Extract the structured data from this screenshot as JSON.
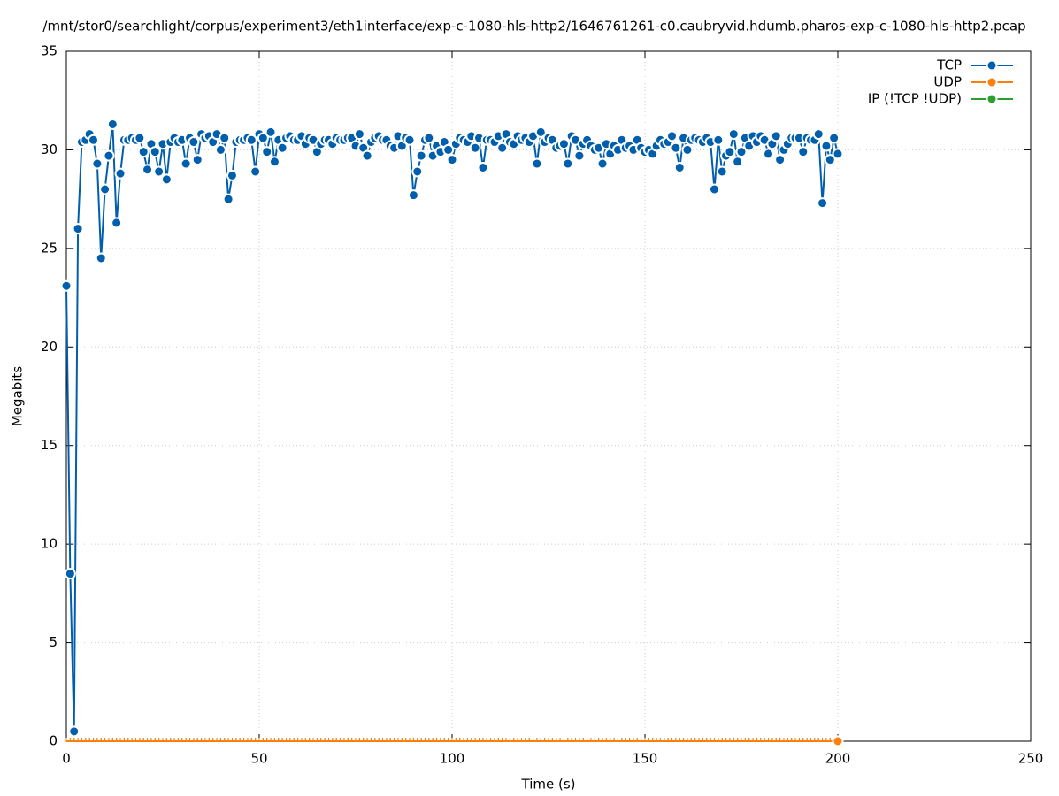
{
  "chart_data": {
    "type": "line",
    "title": "/mnt/stor0/searchlight/corpus/experiment3/eth1interface/exp-c-1080-hls-http2/1646761261-c0.caubryvid.hdumb.pharos-exp-c-1080-hls-http2.pcap",
    "x_label": "Time (s)",
    "y_label": "Megabits",
    "xlim": [
      0,
      250
    ],
    "ylim": [
      0,
      35
    ],
    "xticks": [
      0,
      50,
      100,
      150,
      200,
      250
    ],
    "yticks": [
      0,
      5,
      10,
      15,
      20,
      25,
      30,
      35
    ],
    "grid": true,
    "legend": "top-right",
    "x": [
      0,
      1,
      2,
      3,
      4,
      5,
      6,
      7,
      8,
      9,
      10,
      11,
      12,
      13,
      14,
      15,
      16,
      17,
      18,
      19,
      20,
      21,
      22,
      23,
      24,
      25,
      26,
      27,
      28,
      29,
      30,
      31,
      32,
      33,
      34,
      35,
      36,
      37,
      38,
      39,
      40,
      41,
      42,
      43,
      44,
      45,
      46,
      47,
      48,
      49,
      50,
      51,
      52,
      53,
      54,
      55,
      56,
      57,
      58,
      59,
      60,
      61,
      62,
      63,
      64,
      65,
      66,
      67,
      68,
      69,
      70,
      71,
      72,
      73,
      74,
      75,
      76,
      77,
      78,
      79,
      80,
      81,
      82,
      83,
      84,
      85,
      86,
      87,
      88,
      89,
      90,
      91,
      92,
      93,
      94,
      95,
      96,
      97,
      98,
      99,
      100,
      101,
      102,
      103,
      104,
      105,
      106,
      107,
      108,
      109,
      110,
      111,
      112,
      113,
      114,
      115,
      116,
      117,
      118,
      119,
      120,
      121,
      122,
      123,
      124,
      125,
      126,
      127,
      128,
      129,
      130,
      131,
      132,
      133,
      134,
      135,
      136,
      137,
      138,
      139,
      140,
      141,
      142,
      143,
      144,
      145,
      146,
      147,
      148,
      149,
      150,
      151,
      152,
      153,
      154,
      155,
      156,
      157,
      158,
      159,
      160,
      161,
      162,
      163,
      164,
      165,
      166,
      167,
      168,
      169,
      170,
      171,
      172,
      173,
      174,
      175,
      176,
      177,
      178,
      179,
      180,
      181,
      182,
      183,
      184,
      185,
      186,
      187,
      188,
      189,
      190,
      191,
      192,
      193,
      194,
      195,
      196,
      197,
      198,
      199,
      200
    ],
    "series": [
      {
        "name": "TCP",
        "color": "#005fad",
        "values": [
          23.1,
          8.5,
          0.5,
          26,
          30.4,
          30.5,
          30.8,
          30.5,
          29.3,
          24.5,
          28,
          29.7,
          31.3,
          26.3,
          28.8,
          30.5,
          30.5,
          30.6,
          30.5,
          30.6,
          29.9,
          29,
          30.3,
          29.9,
          28.9,
          30.3,
          28.5,
          30.4,
          30.6,
          30.4,
          30.5,
          29.3,
          30.6,
          30.4,
          29.5,
          30.8,
          30.6,
          30.7,
          30.4,
          30.8,
          30,
          30.6,
          27.5,
          28.7,
          30.4,
          30.5,
          30.5,
          30.6,
          30.5,
          28.9,
          30.8,
          30.6,
          29.9,
          30.9,
          29.4,
          30.5,
          30.1,
          30.6,
          30.7,
          30.5,
          30.5,
          30.7,
          30.3,
          30.6,
          30.5,
          29.9,
          30.3,
          30.5,
          30.5,
          30.3,
          30.6,
          30.5,
          30.5,
          30.6,
          30.6,
          30.2,
          30.8,
          30.1,
          29.7,
          30.4,
          30.6,
          30.7,
          30.5,
          30.5,
          30.2,
          30.1,
          30.7,
          30.2,
          30.6,
          30.5,
          27.7,
          28.9,
          29.7,
          30.5,
          30.6,
          29.7,
          30.2,
          29.9,
          30.4,
          30,
          29.5,
          30.3,
          30.6,
          30.5,
          30.4,
          30.7,
          30.1,
          30.6,
          29.1,
          30.5,
          30.5,
          30.4,
          30.7,
          30.1,
          30.8,
          30.4,
          30.3,
          30.7,
          30.5,
          30.6,
          30.4,
          30.7,
          29.3,
          30.9,
          30.4,
          30.6,
          30.5,
          30.1,
          30.2,
          30.3,
          29.3,
          30.7,
          30.5,
          29.7,
          30.3,
          30.5,
          30.2,
          30,
          30.1,
          29.3,
          30.3,
          29.8,
          30.2,
          30,
          30.5,
          30.1,
          30.2,
          30,
          30.5,
          30.1,
          29.9,
          30,
          29.8,
          30.2,
          30.5,
          30.3,
          30.4,
          30.7,
          30.1,
          29.1,
          30.6,
          30,
          30.5,
          30.6,
          30.5,
          30.4,
          30.6,
          30.4,
          28,
          30.5,
          28.9,
          29.7,
          29.9,
          30.8,
          29.4,
          29.9,
          30.6,
          30.2,
          30.7,
          30.4,
          30.7,
          30.5,
          29.8,
          30.3,
          30.7,
          29.5,
          30,
          30.3,
          30.6,
          30.6,
          30.6,
          29.9,
          30.6,
          30.5,
          30.5,
          30.8,
          27.3,
          30.2,
          29.5,
          30.6,
          29.8
        ]
      },
      {
        "name": "UDP",
        "color": "#ff7f0e",
        "values": [
          0,
          0,
          0,
          0,
          0,
          0,
          0,
          0,
          0,
          0,
          0,
          0,
          0,
          0,
          0,
          0,
          0,
          0,
          0,
          0,
          0,
          0,
          0,
          0,
          0,
          0,
          0,
          0,
          0,
          0,
          0,
          0,
          0,
          0,
          0,
          0,
          0,
          0,
          0,
          0,
          0,
          0,
          0,
          0,
          0,
          0,
          0,
          0,
          0,
          0,
          0,
          0,
          0,
          0,
          0,
          0,
          0,
          0,
          0,
          0,
          0,
          0,
          0,
          0,
          0,
          0,
          0,
          0,
          0,
          0,
          0,
          0,
          0,
          0,
          0,
          0,
          0,
          0,
          0,
          0,
          0,
          0,
          0,
          0,
          0,
          0,
          0,
          0,
          0,
          0,
          0,
          0,
          0,
          0,
          0,
          0,
          0,
          0,
          0,
          0,
          0,
          0,
          0,
          0,
          0,
          0,
          0,
          0,
          0,
          0,
          0,
          0,
          0,
          0,
          0,
          0,
          0,
          0,
          0,
          0,
          0,
          0,
          0,
          0,
          0,
          0,
          0,
          0,
          0,
          0,
          0,
          0,
          0,
          0,
          0,
          0,
          0,
          0,
          0,
          0,
          0,
          0,
          0,
          0,
          0,
          0,
          0,
          0,
          0,
          0,
          0,
          0,
          0,
          0,
          0,
          0,
          0,
          0,
          0,
          0,
          0,
          0,
          0,
          0,
          0,
          0,
          0,
          0,
          0,
          0,
          0,
          0,
          0,
          0,
          0,
          0,
          0,
          0,
          0,
          0,
          0,
          0,
          0,
          0,
          0,
          0,
          0,
          0,
          0,
          0,
          0,
          0,
          0,
          0,
          0,
          0,
          0,
          0,
          0,
          0,
          0
        ]
      },
      {
        "name": "IP (!TCP  !UDP)",
        "color": "#2ca02c",
        "values": [
          0,
          0,
          0,
          0,
          0,
          0,
          0,
          0,
          0,
          0,
          0,
          0,
          0,
          0,
          0,
          0,
          0,
          0,
          0,
          0,
          0,
          0,
          0,
          0,
          0,
          0,
          0,
          0,
          0,
          0,
          0,
          0,
          0,
          0,
          0,
          0,
          0,
          0,
          0,
          0,
          0,
          0,
          0,
          0,
          0,
          0,
          0,
          0,
          0,
          0,
          0,
          0,
          0,
          0,
          0,
          0,
          0,
          0,
          0,
          0,
          0,
          0,
          0,
          0,
          0,
          0,
          0,
          0,
          0,
          0,
          0,
          0,
          0,
          0,
          0,
          0,
          0,
          0,
          0,
          0,
          0,
          0,
          0,
          0,
          0,
          0,
          0,
          0,
          0,
          0,
          0,
          0,
          0,
          0,
          0,
          0,
          0,
          0,
          0,
          0,
          0,
          0,
          0,
          0,
          0,
          0,
          0,
          0,
          0,
          0,
          0,
          0,
          0,
          0,
          0,
          0,
          0,
          0,
          0,
          0,
          0,
          0,
          0,
          0,
          0,
          0,
          0,
          0,
          0,
          0,
          0,
          0,
          0,
          0,
          0,
          0,
          0,
          0,
          0,
          0,
          0,
          0,
          0,
          0,
          0,
          0,
          0,
          0,
          0,
          0,
          0,
          0,
          0,
          0,
          0,
          0,
          0,
          0,
          0,
          0,
          0,
          0,
          0,
          0,
          0,
          0,
          0,
          0,
          0,
          0,
          0,
          0,
          0,
          0,
          0,
          0,
          0,
          0,
          0,
          0,
          0,
          0,
          0,
          0,
          0,
          0,
          0,
          0,
          0,
          0,
          0,
          0,
          0,
          0,
          0,
          0,
          0,
          0,
          0,
          0,
          0
        ]
      }
    ]
  }
}
